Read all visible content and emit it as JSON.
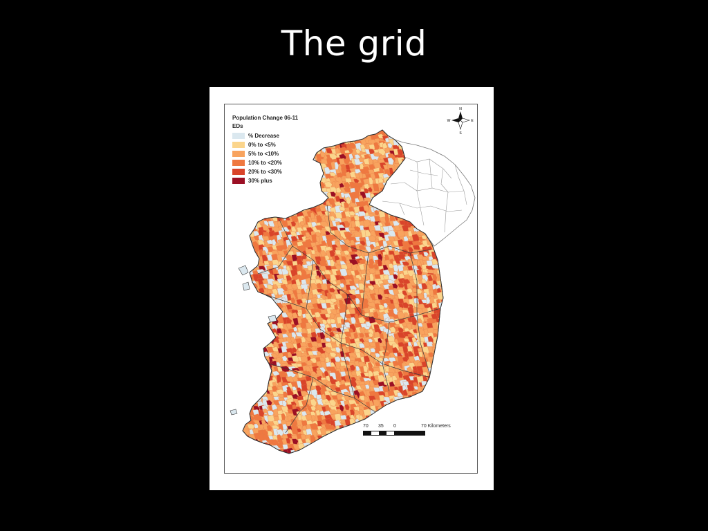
{
  "slide": {
    "title": "The grid"
  },
  "map": {
    "title": "Population Change 06-11",
    "subtitle": "EDs",
    "legend": [
      {
        "label": "% Decrease",
        "color": "#dbe8ef"
      },
      {
        "label": "0% to <5%",
        "color": "#fbd58c"
      },
      {
        "label": "5% to <10%",
        "color": "#f8a35e"
      },
      {
        "label": "10% to <20%",
        "color": "#ef7840"
      },
      {
        "label": "20% to <30%",
        "color": "#d9442a"
      },
      {
        "label": "30% plus",
        "color": "#9b0f24"
      }
    ],
    "scale_bar": {
      "labels": [
        "70",
        "35",
        "0",
        "70 Kilometers"
      ]
    },
    "compass": {
      "n": "N",
      "s": "S",
      "e": "E",
      "w": "W"
    }
  }
}
